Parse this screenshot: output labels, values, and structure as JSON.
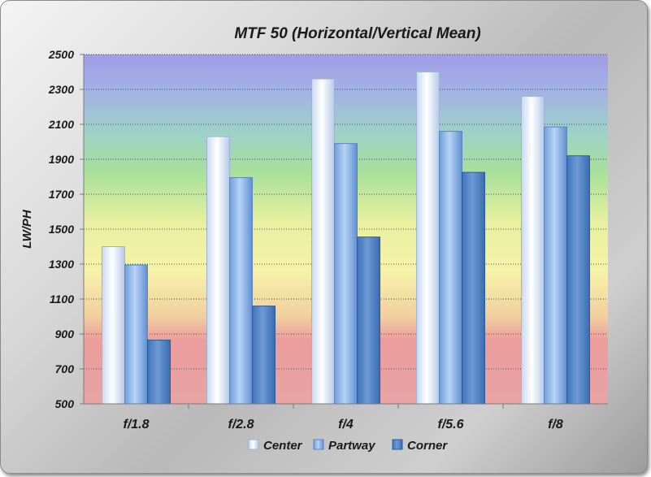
{
  "chart_data": {
    "type": "bar",
    "title": "MTF 50 (Horizontal/Vertical Mean)",
    "xlabel": "",
    "ylabel": "LW/PH",
    "categories": [
      "f/1.8",
      "f/2.8",
      "f/4",
      "f/5.6",
      "f/8"
    ],
    "series": [
      {
        "name": "Center",
        "values": [
          1400,
          2030,
          2360,
          2400,
          2260
        ],
        "color": "#e6eefa"
      },
      {
        "name": "Partway",
        "values": [
          1295,
          1795,
          1990,
          2060,
          2085
        ],
        "color": "#8fb4e6"
      },
      {
        "name": "Corner",
        "values": [
          865,
          1060,
          1455,
          1825,
          1920
        ],
        "color": "#4f85c9"
      }
    ],
    "ylim": [
      500,
      2500
    ],
    "yticks": [
      500,
      700,
      900,
      1100,
      1300,
      1500,
      1700,
      1900,
      2100,
      2300,
      2500
    ],
    "grid": true,
    "legend_position": "bottom",
    "background_bands": [
      "#e99a9a",
      "#f4f09c",
      "#a7e090",
      "#a7a4ea"
    ]
  }
}
